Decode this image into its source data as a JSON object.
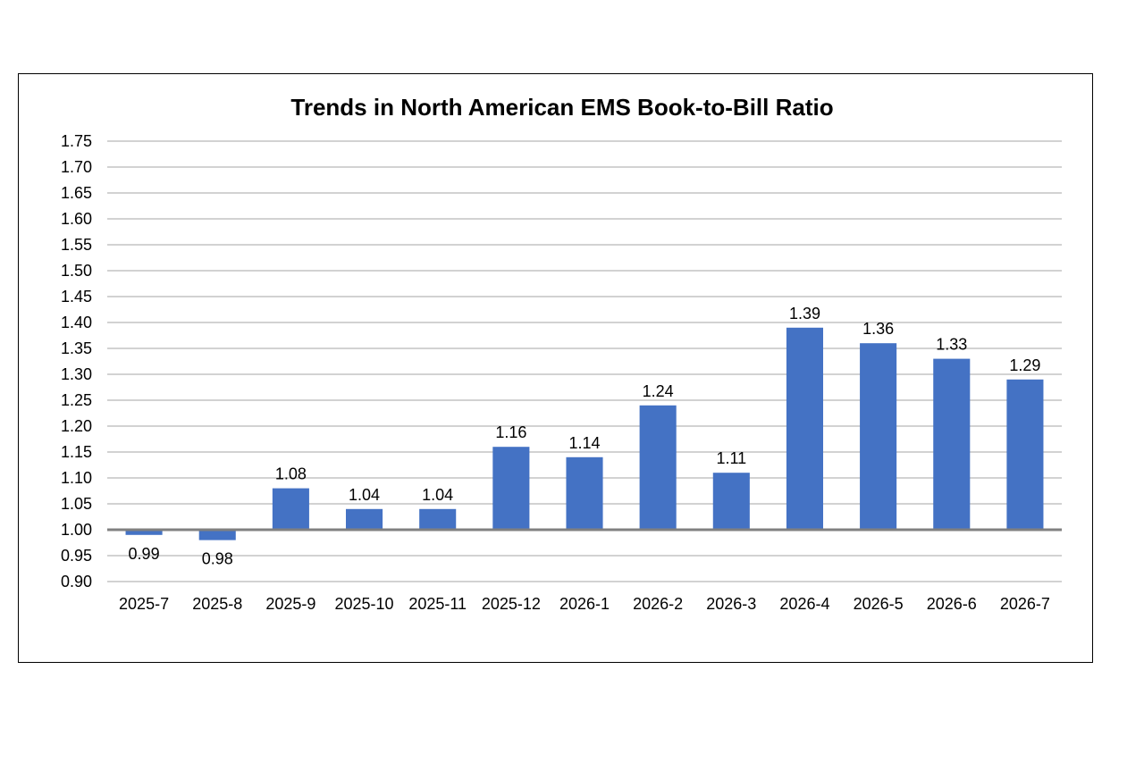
{
  "chart_data": {
    "type": "bar",
    "title": "Trends in North American EMS Book-to-Bill Ratio",
    "xlabel": "",
    "ylabel": "",
    "categories": [
      "2025-7",
      "2025-8",
      "2025-9",
      "2025-10",
      "2025-11",
      "2025-12",
      "2026-1",
      "2026-2",
      "2026-3",
      "2026-4",
      "2026-5",
      "2026-6",
      "2026-7"
    ],
    "values": [
      0.99,
      0.98,
      1.08,
      1.04,
      1.04,
      1.16,
      1.14,
      1.24,
      1.11,
      1.39,
      1.36,
      1.33,
      1.29
    ],
    "data_labels": [
      "0.99",
      "0.98",
      "1.08",
      "1.04",
      "1.04",
      "1.16",
      "1.14",
      "1.24",
      "1.11",
      "1.39",
      "1.36",
      "1.33",
      "1.29"
    ],
    "baseline": 1.0,
    "ylim": [
      0.9,
      1.75
    ],
    "yticks": [
      "0.90",
      "0.95",
      "1.00",
      "1.05",
      "1.10",
      "1.15",
      "1.20",
      "1.25",
      "1.30",
      "1.35",
      "1.40",
      "1.45",
      "1.50",
      "1.55",
      "1.60",
      "1.65",
      "1.70",
      "1.75"
    ],
    "grid": true,
    "legend": "none",
    "colors": {
      "bar": "#4472C4",
      "grid": "#A6A6A6",
      "baseline": "#808080",
      "text": "#000000"
    }
  }
}
